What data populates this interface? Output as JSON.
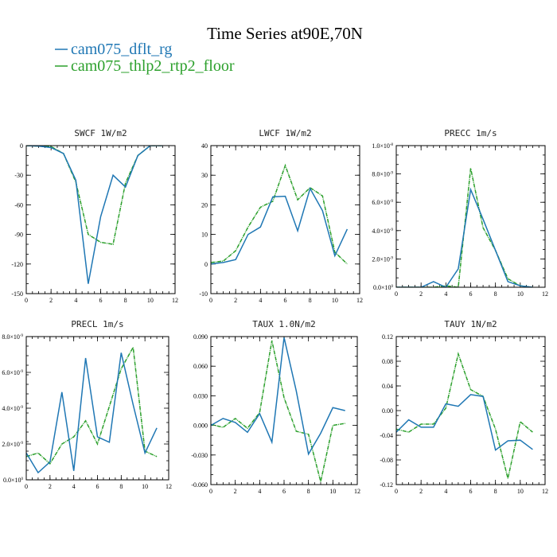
{
  "title": "Time Series at90E,70N",
  "colors": {
    "blue": "#1f77b4",
    "green": "#2ca02c"
  },
  "legend": [
    {
      "label": "cam075_dflt_rg",
      "color": "#1f77b4",
      "style": "solid"
    },
    {
      "label": "cam075_thlp2_rtp2_floor",
      "color": "#2ca02c",
      "style": "dashed"
    }
  ],
  "chart_data": [
    {
      "type": "line",
      "title": "SWCF   1W/m2",
      "xlim": [
        0,
        12
      ],
      "ylim": [
        -150,
        0
      ],
      "xticks": [
        "0",
        "2",
        "4",
        "6",
        "8",
        "10",
        "12"
      ],
      "yticks": [
        "0",
        "-30",
        "-60",
        "-90",
        "-120",
        "-150"
      ],
      "x": [
        0,
        1,
        2,
        3,
        4,
        5,
        6,
        7,
        8,
        9,
        10,
        11
      ],
      "series": [
        {
          "name": "cam075_dflt_rg",
          "values": [
            0,
            -0.5,
            -2,
            -8,
            -35,
            -140,
            -72,
            -30,
            -42,
            -10,
            0,
            0
          ]
        },
        {
          "name": "cam075_thlp2_rtp2_floor",
          "values": [
            0,
            -0.5,
            -1,
            -8,
            -37,
            -90,
            -98,
            -100,
            -38,
            -10,
            0,
            0
          ]
        }
      ]
    },
    {
      "type": "line",
      "title": "LWCF   1W/m2",
      "xlim": [
        0,
        12
      ],
      "ylim": [
        -10,
        40
      ],
      "xticks": [
        "0",
        "2",
        "4",
        "6",
        "8",
        "10",
        "12"
      ],
      "yticks": [
        "40",
        "30",
        "20",
        "10",
        "0",
        "-10"
      ],
      "x": [
        0,
        1,
        2,
        3,
        4,
        5,
        6,
        7,
        8,
        9,
        10,
        11
      ],
      "series": [
        {
          "name": "cam075_dflt_rg",
          "values": [
            0,
            0.5,
            1.5,
            10,
            12.5,
            22.7,
            22.9,
            11.2,
            25.5,
            18,
            2.8,
            11.8
          ]
        },
        {
          "name": "cam075_thlp2_rtp2_floor",
          "values": [
            0.5,
            1,
            4.5,
            12.5,
            19.2,
            21.2,
            33.3,
            21.7,
            25.8,
            23,
            4,
            0
          ]
        }
      ]
    },
    {
      "type": "line",
      "title": "PRECC   1m/s",
      "xlim": [
        0,
        12
      ],
      "ylim": [
        0,
        1e-08
      ],
      "xticks": [
        "0",
        "2",
        "4",
        "6",
        "8",
        "10",
        "12"
      ],
      "yticks": [
        {
          "m": "1.0×10",
          "e": "-8"
        },
        {
          "m": "8.0×10",
          "e": "-9"
        },
        {
          "m": "6.0×10",
          "e": "-9"
        },
        {
          "m": "4.0×10",
          "e": "-9"
        },
        {
          "m": "2.0×10",
          "e": "-9"
        },
        {
          "m": "0.0×10",
          "e": "0"
        }
      ],
      "x": [
        0,
        1,
        2,
        3,
        4,
        5,
        6,
        7,
        8,
        9,
        10,
        11
      ],
      "series": [
        {
          "name": "cam075_dflt_rg",
          "values": [
            0,
            0,
            0,
            4e-10,
            0,
            1.3e-09,
            6.9e-09,
            4.8e-09,
            2.6e-09,
            4e-10,
            1e-10,
            0
          ]
        },
        {
          "name": "cam075_thlp2_rtp2_floor",
          "values": [
            0,
            0,
            0,
            0,
            1e-10,
            0,
            8.4e-09,
            4.2e-09,
            2.6e-09,
            6e-10,
            1e-10,
            0
          ]
        }
      ]
    },
    {
      "type": "line",
      "title": "PRECL   1m/s",
      "xlim": [
        0,
        12
      ],
      "ylim": [
        0,
        8e-09
      ],
      "xticks": [
        "0",
        "2",
        "4",
        "6",
        "8",
        "10",
        "12"
      ],
      "yticks": [
        {
          "m": "8.0×10",
          "e": "-9"
        },
        {
          "m": "6.0×10",
          "e": "-9"
        },
        {
          "m": "4.0×10",
          "e": "-9"
        },
        {
          "m": "2.0×10",
          "e": "-9"
        },
        {
          "m": "0.0×10",
          "e": "0"
        }
      ],
      "x": [
        0,
        1,
        2,
        3,
        4,
        5,
        6,
        7,
        8,
        9,
        10,
        11
      ],
      "series": [
        {
          "name": "cam075_dflt_rg",
          "values": [
            1.5e-09,
            4e-10,
            1e-09,
            4.9e-09,
            5e-10,
            6.8e-09,
            2.4e-09,
            2.1e-09,
            7.1e-09,
            4.2e-09,
            1.5e-09,
            2.9e-09
          ]
        },
        {
          "name": "cam075_thlp2_rtp2_floor",
          "values": [
            1.3e-09,
            1.5e-09,
            9e-10,
            2e-09,
            2.4e-09,
            3.3e-09,
            2e-09,
            4.1e-09,
            6.2e-09,
            7.4e-09,
            1.6e-09,
            1.3e-09
          ]
        }
      ]
    },
    {
      "type": "line",
      "title": "TAUX   1.0N/m2",
      "xlim": [
        0,
        12
      ],
      "ylim": [
        -0.06,
        0.09
      ],
      "xticks": [
        "0",
        "2",
        "4",
        "6",
        "8",
        "10",
        "12"
      ],
      "yticks": [
        "0.090",
        "0.060",
        "0.030",
        "0.000",
        "-0.030",
        "-0.060"
      ],
      "x": [
        0,
        1,
        2,
        3,
        4,
        5,
        6,
        7,
        8,
        9,
        10,
        11
      ],
      "series": [
        {
          "name": "cam075_dflt_rg",
          "values": [
            0,
            0.007,
            0.003,
            -0.007,
            0.012,
            -0.017,
            0.089,
            0.035,
            -0.029,
            -0.008,
            0.018,
            0.015
          ]
        },
        {
          "name": "cam075_thlp2_rtp2_floor",
          "values": [
            0.001,
            -0.002,
            0.007,
            -0.003,
            0.013,
            0.086,
            0.028,
            -0.006,
            -0.009,
            -0.057,
            0,
            0.002
          ]
        }
      ]
    },
    {
      "type": "line",
      "title": "TAUY   1N/m2",
      "xlim": [
        0,
        12
      ],
      "ylim": [
        -0.12,
        0.12
      ],
      "xticks": [
        "0",
        "2",
        "4",
        "6",
        "8",
        "10",
        "12"
      ],
      "yticks": [
        "0.12",
        "0.08",
        "0.04",
        "0.00",
        "-0.04",
        "-0.08",
        "-0.12"
      ],
      "x": [
        0,
        1,
        2,
        3,
        4,
        5,
        6,
        7,
        8,
        9,
        10,
        11
      ],
      "series": [
        {
          "name": "cam075_dflt_rg",
          "values": [
            -0.035,
            -0.015,
            -0.027,
            -0.027,
            0.011,
            0.007,
            0.026,
            0.023,
            -0.064,
            -0.049,
            -0.048,
            -0.063
          ]
        },
        {
          "name": "cam075_thlp2_rtp2_floor",
          "values": [
            -0.03,
            -0.035,
            -0.022,
            -0.022,
            0.004,
            0.092,
            0.034,
            0.023,
            -0.03,
            -0.11,
            -0.018,
            -0.035
          ]
        }
      ]
    }
  ]
}
